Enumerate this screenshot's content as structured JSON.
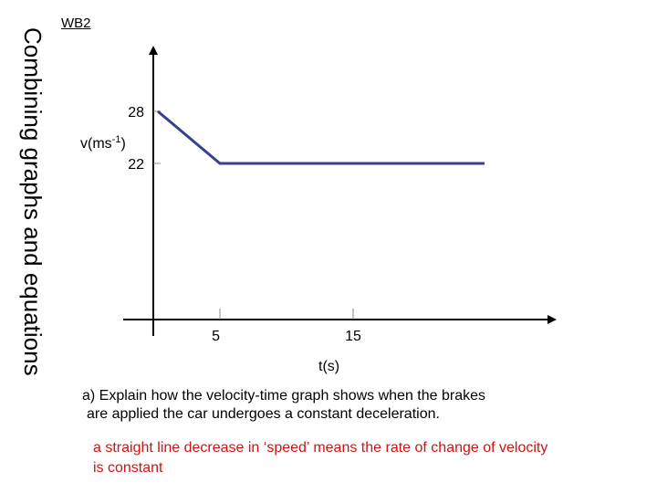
{
  "header": {
    "label": "WB2",
    "side_title": "Combining graphs and equations"
  },
  "chart_data": {
    "type": "line",
    "x": [
      0,
      5,
      15
    ],
    "series": [
      {
        "values": [
          28,
          22,
          22
        ]
      }
    ],
    "xlabel": "t(s)",
    "ylabel_text": "v(ms",
    "ylabel_sup": "-1",
    "ylabel_close": ")",
    "x_ticks": [
      5,
      15
    ],
    "y_ticks": [
      28,
      22
    ],
    "grid": false,
    "colors": {
      "line": "#3a3f96",
      "axis": "#000000"
    }
  },
  "question": {
    "line1": "a) Explain how the velocity-time graph shows when the brakes",
    "line2": "are applied the car undergoes a constant deceleration."
  },
  "answer": {
    "line1": "a straight line decrease in ‘speed’  means the rate of change of velocity",
    "line2": "is constant",
    "color": "#cc1414"
  }
}
